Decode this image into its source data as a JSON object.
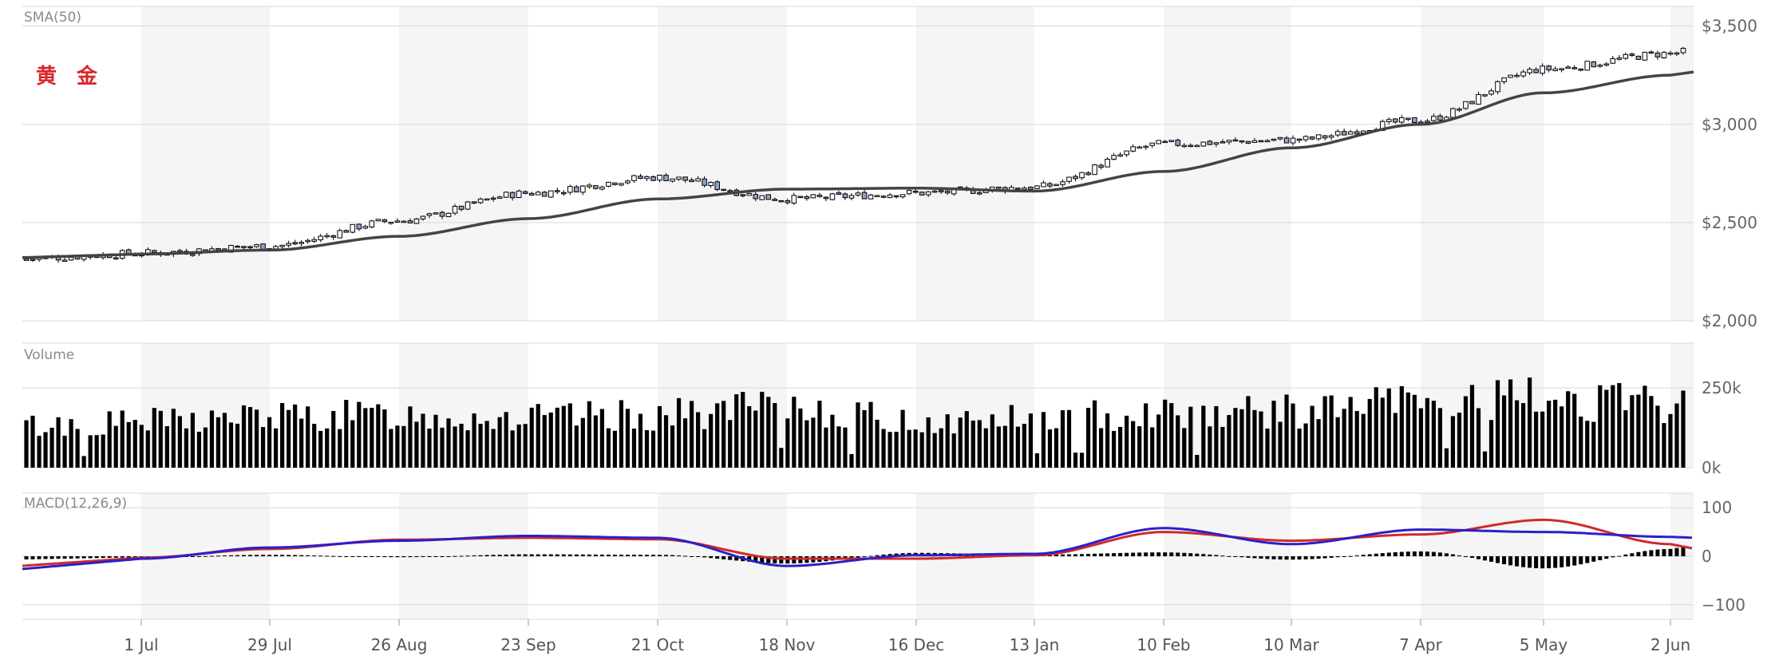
{
  "logo_text": "黄 金",
  "panels": {
    "price": {
      "label": "SMA(50)",
      "yticks": [
        {
          "value": 2000,
          "label": "$2,000"
        },
        {
          "value": 2500,
          "label": "$2,500"
        },
        {
          "value": 3000,
          "label": "$3,000"
        },
        {
          "value": 3500,
          "label": "$3,500"
        }
      ],
      "ylim": [
        2000,
        3600
      ]
    },
    "volume": {
      "label": "Volume",
      "yticks": [
        {
          "value": 0,
          "label": "0k"
        },
        {
          "value": 250,
          "label": "250k"
        }
      ],
      "ylim": [
        0,
        390
      ]
    },
    "macd": {
      "label": "MACD(12,26,9)",
      "yticks": [
        {
          "value": -100,
          "label": "−100"
        },
        {
          "value": 0,
          "label": "0"
        },
        {
          "value": 100,
          "label": "100"
        }
      ],
      "ylim": [
        -130,
        130
      ]
    }
  },
  "x_dates": [
    "1 Jul",
    "29 Jul",
    "26 Aug",
    "23 Sep",
    "21 Oct",
    "18 Nov",
    "16 Dec",
    "13 Jan",
    "10 Feb",
    "10 Mar",
    "7 Apr",
    "5 May",
    "2 Jun"
  ],
  "colors": {
    "up_fill": "#ffffff",
    "down_fill": "#8aa4cc",
    "candle_stroke": "#000000",
    "sma": "#444444",
    "macd_line": "#2a20c8",
    "signal_line": "#d02a2a",
    "band": "#f5f5f5",
    "grid": "#d8d8d8",
    "volume_bar": "#000000"
  },
  "chart_data": [
    {
      "type": "candlestick",
      "title": "SMA(50)",
      "x": [
        "1 Jul",
        "29 Jul",
        "26 Aug",
        "23 Sep",
        "21 Oct",
        "18 Nov",
        "16 Dec",
        "13 Jan",
        "10 Feb",
        "10 Mar",
        "7 Apr",
        "5 May",
        "2 Jun"
      ],
      "close_approx": [
        2345,
        2380,
        2510,
        2650,
        2730,
        2620,
        2650,
        2680,
        2900,
        2920,
        3020,
        3280,
        3360
      ],
      "sma50_approx": [
        2340,
        2360,
        2430,
        2520,
        2620,
        2670,
        2675,
        2660,
        2760,
        2880,
        3000,
        3160,
        3250
      ],
      "ylim": [
        2000,
        3600
      ]
    },
    {
      "type": "bar",
      "title": "Volume",
      "unit": "k",
      "x": [
        "1 Jul",
        "29 Jul",
        "26 Aug",
        "23 Sep",
        "21 Oct",
        "18 Nov",
        "16 Dec",
        "13 Jan",
        "10 Feb",
        "10 Mar",
        "7 Apr",
        "5 May",
        "2 Jun"
      ],
      "values_approx": [
        140,
        155,
        160,
        150,
        160,
        185,
        140,
        150,
        170,
        170,
        200,
        210,
        190
      ],
      "ylim": [
        0,
        390
      ]
    },
    {
      "type": "line",
      "title": "MACD(12,26,9)",
      "x": [
        "1 Jul",
        "29 Jul",
        "26 Aug",
        "23 Sep",
        "21 Oct",
        "18 Nov",
        "16 Dec",
        "13 Jan",
        "10 Feb",
        "10 Mar",
        "7 Apr",
        "5 May",
        "2 Jun"
      ],
      "series": [
        {
          "values": [
            -5,
            18,
            32,
            42,
            38,
            -20,
            2,
            5,
            58,
            25,
            55,
            50,
            40
          ]
        },
        {
          "values": [
            -3,
            15,
            34,
            38,
            35,
            -5,
            -5,
            2,
            50,
            32,
            45,
            75,
            25
          ]
        }
      ],
      "ylim": [
        -130,
        130
      ]
    }
  ]
}
